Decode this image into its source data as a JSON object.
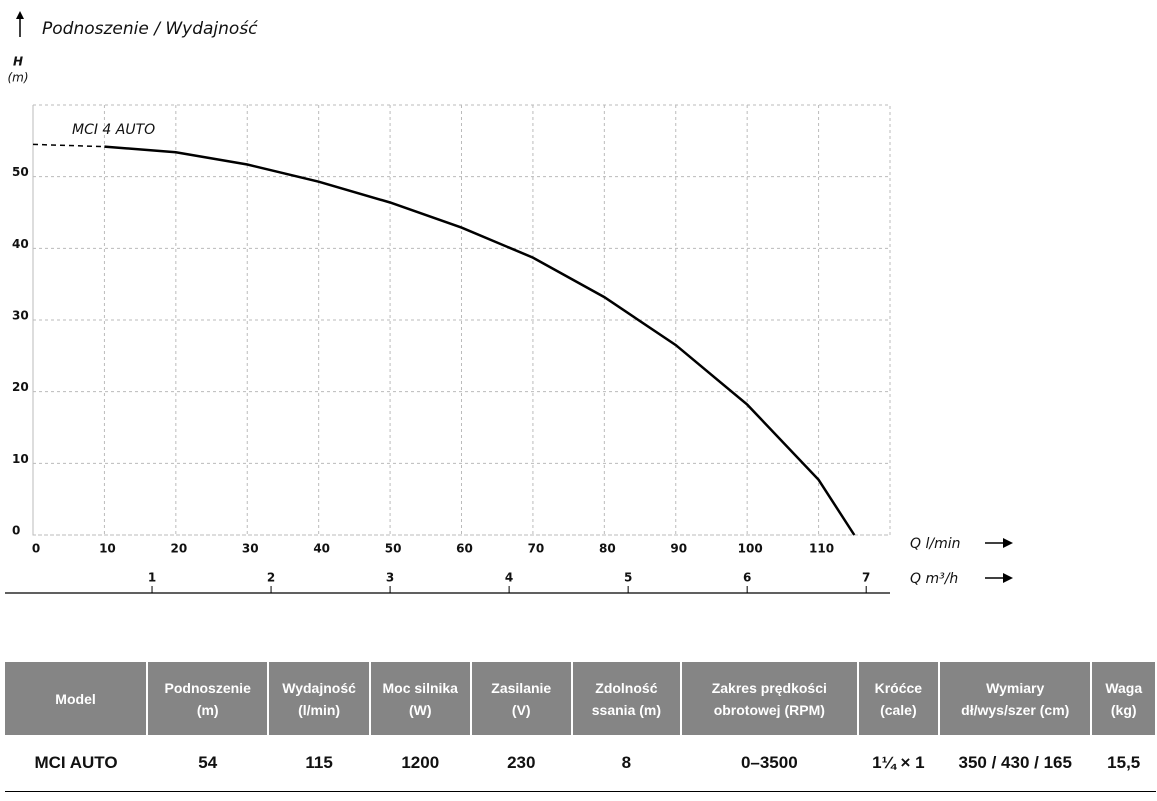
{
  "chart_data": {
    "type": "line",
    "title": "Podnoszenie / Wydajność",
    "y_label": "H",
    "y_unit": "(m)",
    "x_label": "Q l/min",
    "x2_label": "Q m³/h",
    "x": [
      0,
      10,
      20,
      30,
      40,
      50,
      60,
      70,
      80,
      90,
      100,
      110,
      115
    ],
    "series": [
      {
        "dashed": true,
        "color": "#000000",
        "values": [
          54.5,
          54.2,
          null,
          null,
          null,
          null,
          null,
          null,
          null,
          null,
          null,
          null,
          null
        ]
      },
      {
        "name": "MCI 4 AUTO",
        "color": "#000000",
        "values": [
          null,
          54.2,
          53.4,
          51.7,
          49.3,
          46.4,
          42.9,
          38.7,
          33.2,
          26.5,
          18.2,
          7.7,
          0
        ]
      }
    ],
    "xlim": [
      0,
      120
    ],
    "xticks": [
      0,
      10,
      20,
      30,
      40,
      50,
      60,
      70,
      80,
      90,
      100,
      110
    ],
    "x2lim": [
      0,
      7.2
    ],
    "x2ticks": [
      1,
      2,
      3,
      4,
      5,
      6,
      7
    ],
    "ylim": [
      0,
      60
    ],
    "yticks": [
      0,
      10,
      20,
      30,
      40,
      50
    ],
    "grid": true
  },
  "table": {
    "header": [
      [
        "Model"
      ],
      [
        "Podnoszenie",
        "(m)"
      ],
      [
        "Wydajność",
        "(l/min)"
      ],
      [
        "Moc silnika",
        "(W)"
      ],
      [
        "Zasilanie",
        "(V)"
      ],
      [
        "Zdolność",
        "ssania (m)"
      ],
      [
        "Zakres prędkości",
        "obrotowej (RPM)"
      ],
      [
        "Króćce",
        "(cale)"
      ],
      [
        "Wymiary",
        "dł/wys/szer (cm)"
      ],
      [
        "Waga",
        "(kg)"
      ]
    ],
    "rows": [
      [
        "MCI AUTO",
        "54",
        "115",
        "1200",
        "230",
        "8",
        "0–3500",
        "1¼ × 1",
        "350 / 430 / 165",
        "15,5"
      ]
    ]
  }
}
